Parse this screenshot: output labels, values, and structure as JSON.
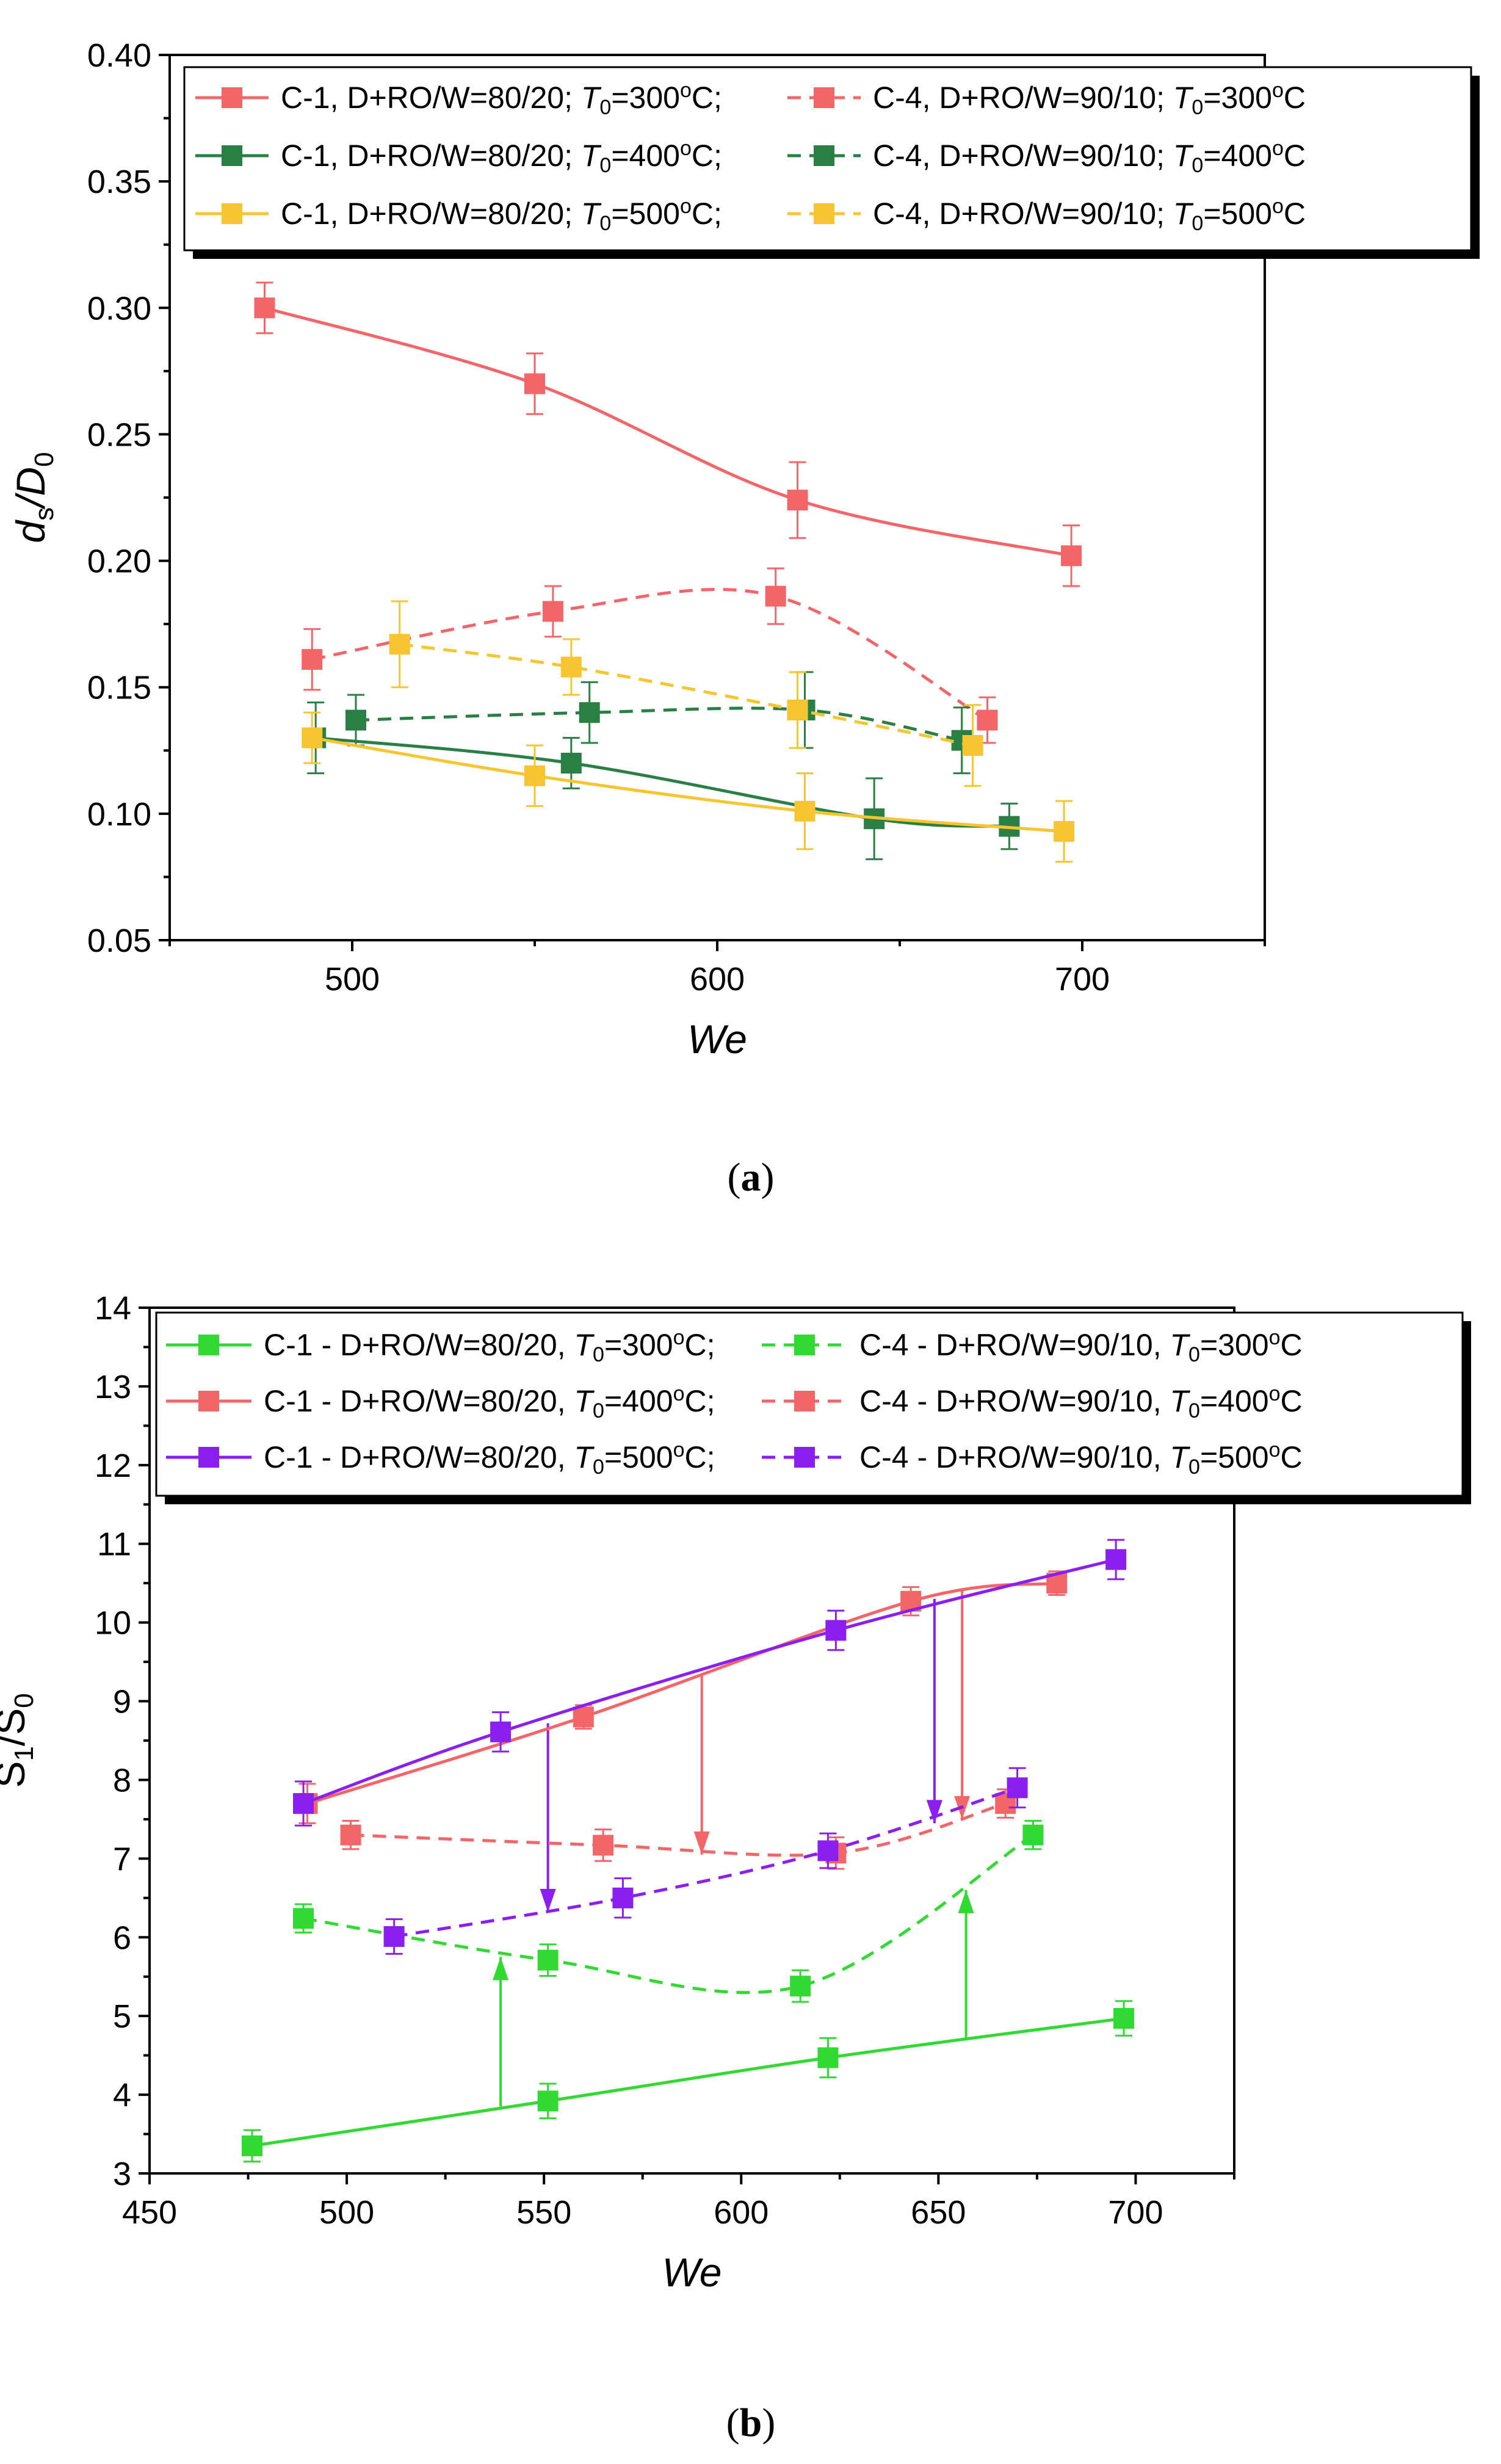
{
  "colors": {
    "red": "#F2666A",
    "dark_green": "#2A7F45",
    "yellow": "#F7C531",
    "bright_green": "#33D933",
    "purple": "#8A1FF0"
  },
  "chart_data": [
    {
      "id": "a",
      "caption": "(a)",
      "type": "line",
      "xlabel": "We",
      "ylabel_main": "d",
      "ylabel_sub": "s",
      "ylabel_sep": "/D",
      "ylabel_sub2": "0",
      "xlim": [
        450,
        750
      ],
      "ylim": [
        0.05,
        0.4
      ],
      "xticks": [
        500,
        600,
        700
      ],
      "xtick_labels": [
        "500",
        "600",
        "700"
      ],
      "yticks": [
        0.05,
        0.1,
        0.15,
        0.2,
        0.25,
        0.3,
        0.35,
        0.4
      ],
      "ytick_labels": [
        "0.05",
        "0.10",
        "0.15",
        "0.20",
        "0.25",
        "0.30",
        "0.35",
        "0.40"
      ],
      "legend_position": "top-right",
      "series": [
        {
          "name": "C-1, D+RO/W=80/20; T0=300oC;",
          "label_pre": "C-1, D+RO/W=80/20; ",
          "label_T": "T",
          "label_T_sub": "0",
          "label_temp": "=300",
          "label_o": "o",
          "label_post": "C;",
          "color": "red",
          "dash": false,
          "x": [
            476,
            550,
            622,
            697
          ],
          "y": [
            0.3,
            0.27,
            0.224,
            0.202
          ],
          "err": [
            0.01,
            0.012,
            0.015,
            0.012
          ]
        },
        {
          "name": "C-4, D+RO/W=90/10; T0=300oC",
          "label_pre": "C-4, D+RO/W=90/10; ",
          "label_T": "T",
          "label_T_sub": "0",
          "label_temp": "=300",
          "label_o": "o",
          "label_post": "C",
          "color": "red",
          "dash": true,
          "x": [
            489,
            555,
            616,
            674
          ],
          "y": [
            0.161,
            0.18,
            0.186,
            0.137
          ],
          "err": [
            0.012,
            0.01,
            0.011,
            0.009
          ]
        },
        {
          "name": "C-1, D+RO/W=80/20; T0=400oC;",
          "label_pre": "C-1, D+RO/W=80/20; ",
          "label_T": "T",
          "label_T_sub": "0",
          "label_temp": "=400",
          "label_o": "o",
          "label_post": "C;",
          "color": "dark_green",
          "dash": false,
          "x": [
            490,
            560,
            643,
            680
          ],
          "y": [
            0.13,
            0.12,
            0.098,
            0.095
          ],
          "err": [
            0.014,
            0.01,
            0.016,
            0.009
          ]
        },
        {
          "name": "C-4, D+RO/W=90/10; T0=400oC",
          "label_pre": "C-4, D+RO/W=90/10; ",
          "label_T": "T",
          "label_T_sub": "0",
          "label_temp": "=400",
          "label_o": "o",
          "label_post": "C",
          "color": "dark_green",
          "dash": true,
          "x": [
            501,
            565,
            624,
            667
          ],
          "y": [
            0.137,
            0.14,
            0.141,
            0.129
          ],
          "err": [
            0.01,
            0.012,
            0.015,
            0.013
          ]
        },
        {
          "name": "C-1, D+RO/W=80/20; T0=500oC;",
          "label_pre": "C-1, D+RO/W=80/20; ",
          "label_T": "T",
          "label_T_sub": "0",
          "label_temp": "=500",
          "label_o": "o",
          "label_post": "C;",
          "color": "yellow",
          "dash": false,
          "x": [
            489,
            550,
            624,
            695
          ],
          "y": [
            0.13,
            0.115,
            0.101,
            0.093
          ],
          "err": [
            0.01,
            0.012,
            0.015,
            0.012
          ]
        },
        {
          "name": "C-4, D+RO/W=90/10; T0=500oC",
          "label_pre": "C-4, D+RO/W=90/10; ",
          "label_T": "T",
          "label_T_sub": "0",
          "label_temp": "=500",
          "label_o": "o",
          "label_post": "C",
          "color": "yellow",
          "dash": true,
          "x": [
            513,
            560,
            622,
            670
          ],
          "y": [
            0.167,
            0.158,
            0.141,
            0.127
          ],
          "err": [
            0.017,
            0.011,
            0.015,
            0.016
          ]
        }
      ]
    },
    {
      "id": "b",
      "caption": "(b)",
      "type": "line",
      "xlabel": "We",
      "ylabel_main": "S",
      "ylabel_sub": "1",
      "ylabel_sep": "/S",
      "ylabel_sub2": "0",
      "xlim": [
        450,
        725
      ],
      "ylim": [
        3,
        14
      ],
      "xticks": [
        450,
        500,
        550,
        600,
        650,
        700
      ],
      "xtick_labels": [
        "450",
        "500",
        "550",
        "600",
        "650",
        "700"
      ],
      "yticks": [
        3,
        4,
        5,
        6,
        7,
        8,
        9,
        10,
        11,
        12,
        13,
        14
      ],
      "ytick_labels": [
        "3",
        "4",
        "5",
        "6",
        "7",
        "8",
        "9",
        "10",
        "11",
        "12",
        "13",
        "14"
      ],
      "legend_position": "top",
      "series": [
        {
          "name": "C-1 - D+RO/W=80/20, T0=300oC;",
          "label_pre": "C-1 - D+RO/W=80/20, ",
          "label_T": "T",
          "label_T_sub": "0",
          "label_temp": "=300",
          "label_o": "o",
          "label_post": "C;",
          "color": "bright_green",
          "dash": false,
          "x": [
            476,
            551,
            622,
            697
          ],
          "y": [
            3.35,
            3.92,
            4.47,
            4.97
          ],
          "err": [
            0.2,
            0.22,
            0.25,
            0.22
          ]
        },
        {
          "name": "C-4 - D+RO/W=90/10, T0=300oC",
          "label_pre": "C-4 - D+RO/W=90/10, ",
          "label_T": "T",
          "label_T_sub": "0",
          "label_temp": "=300",
          "label_o": "o",
          "label_post": "C",
          "color": "bright_green",
          "dash": true,
          "x": [
            489,
            551,
            615,
            674
          ],
          "y": [
            6.24,
            5.71,
            5.38,
            7.3
          ],
          "err": [
            0.18,
            0.2,
            0.2,
            0.18
          ]
        },
        {
          "name": "C-1 - D+RO/W=80/20, T0=400oC;",
          "label_pre": "C-1 - D+RO/W=80/20, ",
          "label_T": "T",
          "label_T_sub": "0",
          "label_temp": "=400",
          "label_o": "o",
          "label_post": "C;",
          "color": "red",
          "dash": false,
          "x": [
            490,
            560,
            643,
            680
          ],
          "y": [
            7.7,
            8.8,
            10.27,
            10.5
          ],
          "err": [
            0.25,
            0.15,
            0.18,
            0.15
          ]
        },
        {
          "name": "C-4 - D+RO/W=90/10, T0=400oC",
          "label_pre": "C-4 - D+RO/W=90/10, ",
          "label_T": "T",
          "label_T_sub": "0",
          "label_temp": "=400",
          "label_o": "o",
          "label_post": "C",
          "color": "red",
          "dash": true,
          "x": [
            501,
            565,
            624,
            667
          ],
          "y": [
            7.3,
            7.17,
            7.07,
            7.7
          ],
          "err": [
            0.18,
            0.2,
            0.2,
            0.18
          ]
        },
        {
          "name": "C-1 - D+RO/W=80/20, T0=500oC;",
          "label_pre": "C-1 - D+RO/W=80/20, ",
          "label_T": "T",
          "label_T_sub": "0",
          "label_temp": "=500",
          "label_o": "o",
          "label_post": "C;",
          "color": "purple",
          "dash": false,
          "x": [
            489,
            539,
            624,
            695
          ],
          "y": [
            7.7,
            8.61,
            9.9,
            10.8
          ],
          "err": [
            0.28,
            0.25,
            0.25,
            0.25
          ]
        },
        {
          "name": "C-4 - D+RO/W=90/10, T0=500oC",
          "label_pre": "C-4 - D+RO/W=90/10, ",
          "label_T": "T",
          "label_T_sub": "0",
          "label_temp": "=500",
          "label_o": "o",
          "label_post": "C",
          "color": "purple",
          "dash": true,
          "x": [
            512,
            570,
            622,
            670
          ],
          "y": [
            6.01,
            6.5,
            7.1,
            7.9
          ],
          "err": [
            0.22,
            0.25,
            0.22,
            0.25
          ]
        }
      ],
      "arrows": [
        {
          "color": "bright_green",
          "x": 539,
          "from": 3.85,
          "to": 5.75
        },
        {
          "color": "bright_green",
          "x": 657,
          "from": 4.72,
          "to": 6.6
        },
        {
          "color": "purple",
          "x": 551,
          "from": 8.72,
          "to": 6.32
        },
        {
          "color": "purple",
          "x": 649,
          "from": 10.3,
          "to": 7.45
        },
        {
          "color": "red",
          "x": 590,
          "from": 9.35,
          "to": 7.05
        },
        {
          "color": "red",
          "x": 656,
          "from": 10.4,
          "to": 7.5
        }
      ]
    }
  ]
}
